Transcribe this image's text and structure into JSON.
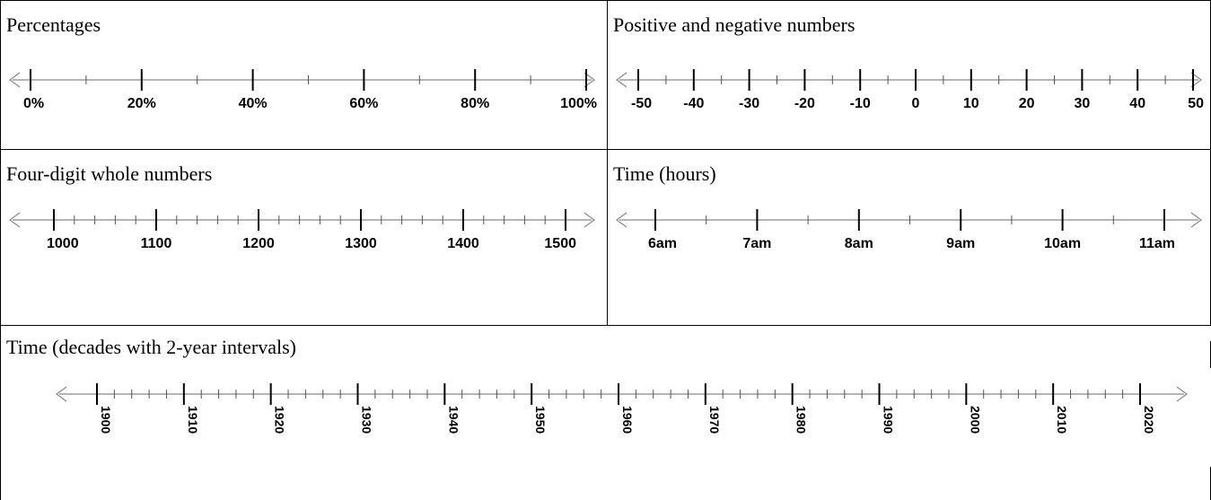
{
  "number_lines": [
    {
      "title": "Percentages",
      "labels": [
        "0%",
        "20%",
        "40%",
        "60%",
        "80%",
        "100%"
      ],
      "minor_per_interval": 1
    },
    {
      "title": "Positive and negative numbers",
      "labels": [
        "-50",
        "-40",
        "-30",
        "-20",
        "-10",
        "0",
        "10",
        "20",
        "30",
        "40",
        "50"
      ],
      "minor_per_interval": 1
    },
    {
      "title": "Four-digit whole numbers",
      "labels": [
        "1000",
        "1100",
        "1200",
        "1300",
        "1400",
        "1500"
      ],
      "minor_per_interval": 4
    },
    {
      "title": "Time (hours)",
      "labels": [
        "6am",
        "7am",
        "8am",
        "9am",
        "10am",
        "11am"
      ],
      "minor_per_interval": 1
    },
    {
      "title": "Time (decades with 2-year intervals)",
      "labels": [
        "1900",
        "1910",
        "1920",
        "1930",
        "1940",
        "1950",
        "1960",
        "1970",
        "1980",
        "1990",
        "2000",
        "2010",
        "2020"
      ],
      "minor_per_interval": 4
    }
  ]
}
